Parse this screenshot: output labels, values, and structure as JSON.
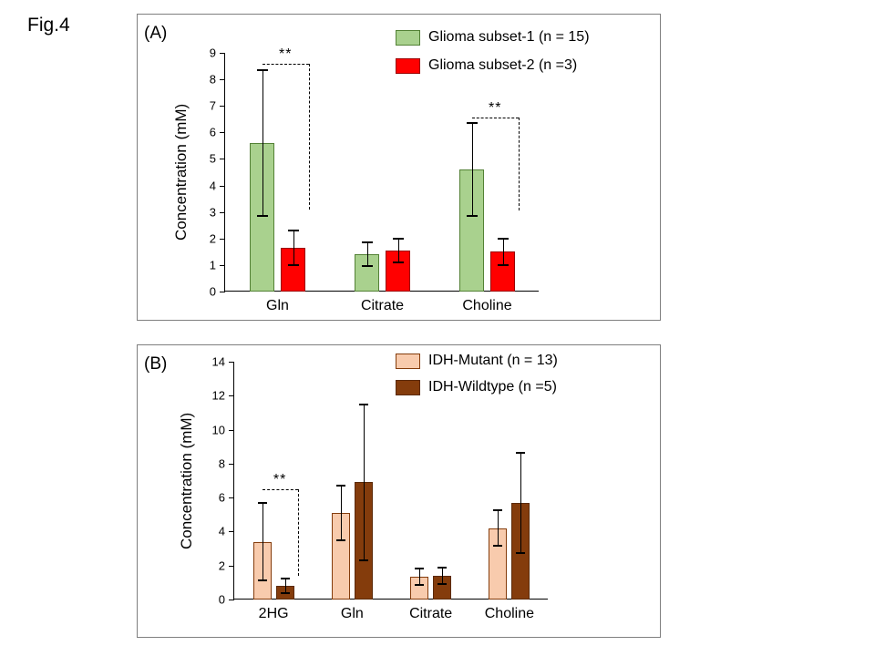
{
  "figure": {
    "label": "Fig.4"
  },
  "chart_data": [
    {
      "type": "bar",
      "panel_label": "(A)",
      "ylabel": "Concentration (mM)",
      "categories": [
        "Gln",
        "Citrate",
        "Choline"
      ],
      "series": [
        {
          "name": "Glioma subset-1 (n = 15)",
          "values": [
            5.6,
            1.4,
            4.6
          ],
          "errors": [
            2.75,
            0.45,
            1.75
          ],
          "fill": "#a9d18e",
          "stroke": "#538135"
        },
        {
          "name": "Glioma subset-2 (n =3)",
          "values": [
            1.65,
            1.55,
            1.5
          ],
          "errors": [
            0.65,
            0.45,
            0.5
          ],
          "fill": "#ff0000",
          "stroke": "#9a0000"
        }
      ],
      "ylim": [
        0,
        9
      ],
      "ytick_step": 1,
      "grid": false,
      "legend_position": "top-right",
      "significance": [
        {
          "category": "Gln",
          "label": "**",
          "top": 8.6,
          "bottom": 3.1
        },
        {
          "category": "Choline",
          "label": "**",
          "top": 6.55,
          "bottom": 3.05
        }
      ]
    },
    {
      "type": "bar",
      "panel_label": "(B)",
      "ylabel": "Concentration (mM)",
      "categories": [
        "2HG",
        "Gln",
        "Citrate",
        "Choline"
      ],
      "series": [
        {
          "name": "IDH-Mutant (n = 13)",
          "values": [
            3.4,
            5.1,
            1.35,
            4.2
          ],
          "errors": [
            2.3,
            1.6,
            0.5,
            1.05
          ],
          "fill": "#f8cbad",
          "stroke": "#843c0c"
        },
        {
          "name": "IDH-Wildtype (n =5)",
          "values": [
            0.8,
            6.9,
            1.4,
            5.7
          ],
          "errors": [
            0.45,
            4.6,
            0.5,
            2.95
          ],
          "fill": "#843c0c",
          "stroke": "#5b2a08"
        }
      ],
      "ylim": [
        0,
        14
      ],
      "ytick_step": 2,
      "grid": false,
      "legend_position": "top-right",
      "significance": [
        {
          "category": "2HG",
          "label": "**",
          "top": 6.5,
          "bottom": 1.4
        }
      ]
    }
  ]
}
